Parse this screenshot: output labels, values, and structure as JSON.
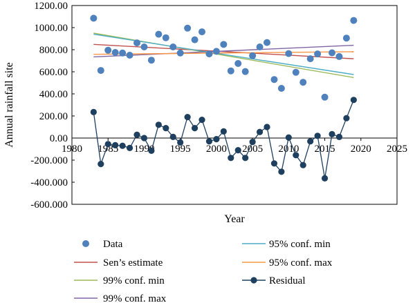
{
  "chart_data": {
    "type": "scatter",
    "title": "",
    "xlabel": "Year",
    "ylabel": "Annual rainfall site",
    "xlim": [
      1980,
      2025
    ],
    "ylim": [
      -600,
      1200
    ],
    "x_ticks": [
      "1980",
      "1985",
      "1990",
      "1995",
      "2000",
      "2005",
      "2010",
      "2015",
      "2020",
      "2025"
    ],
    "y_ticks": [
      "1200.00",
      "1000.00",
      "800.00",
      "600.00",
      "400.00",
      "200.00",
      "0.00",
      "-200.000",
      "-400.000",
      "-600.000"
    ],
    "grid": "none",
    "legend_position": "bottom",
    "series": [
      {
        "name": "Data",
        "kind": "markers",
        "color": "#4f81bd",
        "points": [
          [
            1983,
            1085
          ],
          [
            1984,
            612
          ],
          [
            1985,
            795
          ],
          [
            1986,
            775
          ],
          [
            1987,
            770
          ],
          [
            1988,
            750
          ],
          [
            1989,
            862
          ],
          [
            1990,
            825
          ],
          [
            1991,
            705
          ],
          [
            1992,
            940
          ],
          [
            1993,
            908
          ],
          [
            1994,
            825
          ],
          [
            1995,
            770
          ],
          [
            1996,
            995
          ],
          [
            1997,
            890
          ],
          [
            1998,
            962
          ],
          [
            1999,
            762
          ],
          [
            2000,
            785
          ],
          [
            2001,
            848
          ],
          [
            2002,
            608
          ],
          [
            2003,
            675
          ],
          [
            2004,
            602
          ],
          [
            2005,
            745
          ],
          [
            2006,
            825
          ],
          [
            2007,
            865
          ],
          [
            2008,
            530
          ],
          [
            2009,
            450
          ],
          [
            2010,
            765
          ],
          [
            2011,
            595
          ],
          [
            2012,
            505
          ],
          [
            2013,
            718
          ],
          [
            2014,
            762
          ],
          [
            2015,
            370
          ],
          [
            2016,
            772
          ],
          [
            2017,
            738
          ],
          [
            2018,
            905
          ],
          [
            2019,
            1065
          ]
        ]
      },
      {
        "name": "Sen’s estimate",
        "kind": "line",
        "color": "#c0504d",
        "points": [
          [
            1983,
            848
          ],
          [
            2019,
            718
          ]
        ]
      },
      {
        "name": "99% conf. min",
        "kind": "line",
        "color": "#9bbb59",
        "points": [
          [
            1983,
            950
          ],
          [
            2019,
            548
          ]
        ]
      },
      {
        "name": "99% conf. max",
        "kind": "line",
        "color": "#8064a2",
        "points": [
          [
            1983,
            735
          ],
          [
            2019,
            840
          ]
        ]
      },
      {
        "name": "95% conf. min",
        "kind": "line",
        "color": "#4bacc6",
        "points": [
          [
            1983,
            940
          ],
          [
            2019,
            575
          ]
        ]
      },
      {
        "name": "95% conf. max",
        "kind": "line",
        "color": "#f79646",
        "points": [
          [
            1983,
            758
          ],
          [
            2019,
            782
          ]
        ]
      },
      {
        "name": "Residual",
        "kind": "line-markers",
        "color": "#1f3f5f",
        "points": [
          [
            1983,
            235
          ],
          [
            1984,
            -235
          ],
          [
            1985,
            -55
          ],
          [
            1986,
            -65
          ],
          [
            1987,
            -70
          ],
          [
            1988,
            -90
          ],
          [
            1989,
            30
          ],
          [
            1990,
            0
          ],
          [
            1991,
            -115
          ],
          [
            1992,
            120
          ],
          [
            1993,
            90
          ],
          [
            1994,
            10
          ],
          [
            1995,
            -40
          ],
          [
            1996,
            190
          ],
          [
            1997,
            90
          ],
          [
            1998,
            165
          ],
          [
            1999,
            -30
          ],
          [
            2000,
            -10
          ],
          [
            2001,
            60
          ],
          [
            2002,
            -180
          ],
          [
            2003,
            -110
          ],
          [
            2004,
            -180
          ],
          [
            2005,
            -35
          ],
          [
            2006,
            55
          ],
          [
            2007,
            100
          ],
          [
            2008,
            -230
          ],
          [
            2009,
            -305
          ],
          [
            2010,
            5
          ],
          [
            2011,
            -155
          ],
          [
            2012,
            -245
          ],
          [
            2013,
            -30
          ],
          [
            2014,
            20
          ],
          [
            2015,
            -365
          ],
          [
            2016,
            35
          ],
          [
            2017,
            10
          ],
          [
            2018,
            180
          ],
          [
            2019,
            345
          ]
        ]
      }
    ]
  }
}
